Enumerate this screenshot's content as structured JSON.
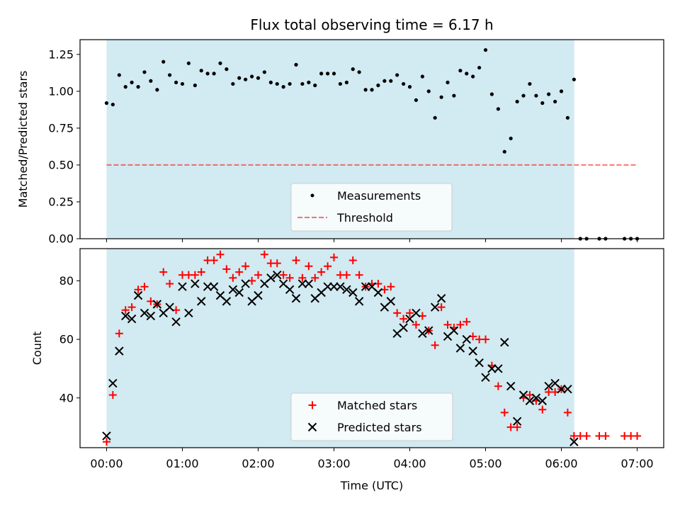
{
  "title": "Flux total observing time = 6.17 h",
  "colors": {
    "span": "#add8e6",
    "threshold": "#ff0000",
    "measurements": "#000000",
    "matched": "#ff0000",
    "predicted": "#000000"
  },
  "chart_data": [
    {
      "type": "scatter",
      "panel": "top",
      "title": "Flux total observing time = 6.17 h",
      "xlabel": "",
      "ylabel": "Matched/Predicted stars",
      "xlim": [
        -0.35,
        7.35
      ],
      "ylim": [
        0.0,
        1.35
      ],
      "x_units": "hours since 00:00 UTC",
      "yticks": [
        0.0,
        0.25,
        0.5,
        0.75,
        1.0,
        1.25
      ],
      "ytick_labels": [
        "0.00",
        "0.25",
        "0.50",
        "0.75",
        "1.00",
        "1.25"
      ],
      "xticks": [
        0,
        1,
        2,
        3,
        4,
        5,
        6,
        7
      ],
      "observing_span": [
        0.0,
        6.17
      ],
      "legend": {
        "placement": "lower center",
        "entries": [
          "Measurements",
          "Threshold"
        ]
      },
      "threshold": {
        "name": "Threshold",
        "value": 0.5,
        "x": [
          0.0,
          7.0
        ]
      },
      "series": [
        {
          "name": "Measurements",
          "x": [
            0.0,
            0.083,
            0.167,
            0.25,
            0.333,
            0.417,
            0.5,
            0.583,
            0.667,
            0.75,
            0.833,
            0.917,
            1.0,
            1.083,
            1.167,
            1.25,
            1.333,
            1.417,
            1.5,
            1.583,
            1.667,
            1.75,
            1.833,
            1.917,
            2.0,
            2.083,
            2.167,
            2.25,
            2.333,
            2.417,
            2.5,
            2.583,
            2.667,
            2.75,
            2.833,
            2.917,
            3.0,
            3.083,
            3.167,
            3.25,
            3.333,
            3.417,
            3.5,
            3.583,
            3.667,
            3.75,
            3.833,
            3.917,
            4.0,
            4.083,
            4.167,
            4.25,
            4.333,
            4.417,
            4.5,
            4.583,
            4.667,
            4.75,
            4.833,
            4.917,
            5.0,
            5.083,
            5.167,
            5.25,
            5.333,
            5.417,
            5.5,
            5.583,
            5.667,
            5.75,
            5.833,
            5.917,
            6.0,
            6.083,
            6.167,
            6.25,
            6.333,
            6.5,
            6.583,
            6.833,
            6.917,
            7.0
          ],
          "y": [
            0.92,
            0.91,
            1.11,
            1.03,
            1.06,
            1.03,
            1.13,
            1.07,
            1.01,
            1.2,
            1.11,
            1.06,
            1.05,
            1.19,
            1.04,
            1.14,
            1.12,
            1.12,
            1.19,
            1.15,
            1.05,
            1.09,
            1.08,
            1.1,
            1.09,
            1.13,
            1.06,
            1.05,
            1.03,
            1.05,
            1.18,
            1.05,
            1.06,
            1.04,
            1.12,
            1.12,
            1.12,
            1.05,
            1.06,
            1.15,
            1.13,
            1.01,
            1.01,
            1.04,
            1.07,
            1.07,
            1.11,
            1.05,
            1.03,
            0.94,
            1.1,
            1.0,
            0.82,
            0.96,
            1.06,
            0.97,
            1.14,
            1.12,
            1.1,
            1.16,
            1.28,
            0.98,
            0.88,
            0.59,
            0.68,
            0.93,
            0.97,
            1.05,
            0.97,
            0.92,
            0.98,
            0.93,
            1.0,
            0.82,
            1.08,
            0.0,
            0.0,
            0.0,
            0.0,
            0.0,
            0.0,
            0.0
          ]
        }
      ]
    },
    {
      "type": "scatter",
      "panel": "bottom",
      "title": "",
      "xlabel": "Time (UTC)",
      "ylabel": "Count",
      "xlim": [
        -0.35,
        7.35
      ],
      "ylim": [
        23,
        91
      ],
      "x_units": "hours since 00:00 UTC",
      "yticks": [
        40,
        60,
        80
      ],
      "ytick_labels": [
        "40",
        "60",
        "80"
      ],
      "xticks": [
        0,
        1,
        2,
        3,
        4,
        5,
        6,
        7
      ],
      "xtick_labels": [
        "00:00",
        "01:00",
        "02:00",
        "03:00",
        "04:00",
        "05:00",
        "06:00",
        "07:00"
      ],
      "observing_span": [
        0.0,
        6.17
      ],
      "legend": {
        "placement": "lower center",
        "entries": [
          "Matched stars",
          "Predicted stars"
        ]
      },
      "series": [
        {
          "name": "Matched stars",
          "x": [
            0.0,
            0.083,
            0.167,
            0.25,
            0.333,
            0.417,
            0.5,
            0.583,
            0.667,
            0.75,
            0.833,
            0.917,
            1.0,
            1.083,
            1.167,
            1.25,
            1.333,
            1.417,
            1.5,
            1.583,
            1.667,
            1.75,
            1.833,
            1.917,
            2.0,
            2.083,
            2.167,
            2.25,
            2.333,
            2.417,
            2.5,
            2.583,
            2.667,
            2.75,
            2.833,
            2.917,
            3.0,
            3.083,
            3.167,
            3.25,
            3.333,
            3.417,
            3.5,
            3.583,
            3.667,
            3.75,
            3.833,
            3.917,
            4.0,
            4.083,
            4.167,
            4.25,
            4.333,
            4.417,
            4.5,
            4.583,
            4.667,
            4.75,
            4.833,
            4.917,
            5.0,
            5.083,
            5.167,
            5.25,
            5.333,
            5.417,
            5.5,
            5.583,
            5.667,
            5.75,
            5.833,
            5.917,
            6.0,
            6.083,
            6.167,
            6.25,
            6.333,
            6.5,
            6.583,
            6.833,
            6.917,
            7.0
          ],
          "y": [
            25,
            41,
            62,
            70,
            71,
            77,
            78,
            73,
            72,
            83,
            79,
            70,
            82,
            82,
            82,
            83,
            87,
            87,
            89,
            84,
            81,
            83,
            85,
            80,
            82,
            89,
            86,
            86,
            82,
            81,
            87,
            81,
            85,
            81,
            83,
            85,
            88,
            82,
            82,
            87,
            82,
            78,
            79,
            79,
            77,
            78,
            69,
            67,
            69,
            65,
            68,
            63,
            58,
            71,
            65,
            64,
            65,
            66,
            61,
            60,
            60,
            51,
            44,
            35,
            30,
            30,
            40,
            41,
            39,
            36,
            42,
            42,
            43,
            35,
            27,
            27,
            27,
            27,
            27,
            27,
            27,
            27
          ]
        },
        {
          "name": "Predicted stars",
          "x": [
            0.0,
            0.083,
            0.167,
            0.25,
            0.333,
            0.417,
            0.5,
            0.583,
            0.667,
            0.75,
            0.833,
            0.917,
            1.0,
            1.083,
            1.167,
            1.25,
            1.333,
            1.417,
            1.5,
            1.583,
            1.667,
            1.75,
            1.833,
            1.917,
            2.0,
            2.083,
            2.167,
            2.25,
            2.333,
            2.417,
            2.5,
            2.583,
            2.667,
            2.75,
            2.833,
            2.917,
            3.0,
            3.083,
            3.167,
            3.25,
            3.333,
            3.417,
            3.5,
            3.583,
            3.667,
            3.75,
            3.833,
            3.917,
            4.0,
            4.083,
            4.167,
            4.25,
            4.333,
            4.417,
            4.5,
            4.583,
            4.667,
            4.75,
            4.833,
            4.917,
            5.0,
            5.083,
            5.167,
            5.25,
            5.333,
            5.417,
            5.5,
            5.583,
            5.667,
            5.75,
            5.833,
            5.917,
            6.0,
            6.083,
            6.167
          ],
          "y": [
            27,
            45,
            56,
            68,
            67,
            75,
            69,
            68,
            72,
            69,
            71,
            66,
            78,
            69,
            79,
            73,
            78,
            78,
            75,
            73,
            77,
            76,
            79,
            73,
            75,
            79,
            81,
            82,
            79,
            77,
            74,
            79,
            79,
            74,
            76,
            78,
            78,
            78,
            77,
            76,
            73,
            78,
            78,
            76,
            71,
            73,
            62,
            64,
            67,
            69,
            62,
            63,
            71,
            74,
            61,
            63,
            57,
            60,
            56,
            52,
            47,
            50,
            50,
            59,
            44,
            32,
            41,
            39,
            40,
            39,
            44,
            45,
            43,
            43,
            25
          ]
        }
      ]
    }
  ]
}
